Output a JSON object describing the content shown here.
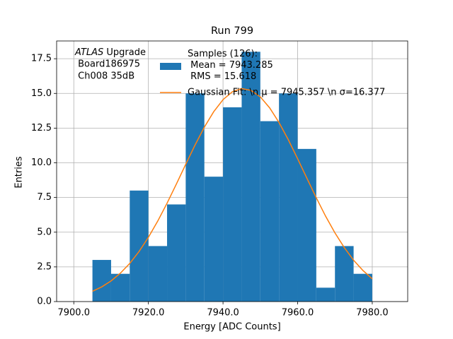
{
  "chart_data": {
    "type": "histogram",
    "title": "Run 799",
    "xlabel": "Energy [ADC Counts]",
    "ylabel": "Entries",
    "annotation_title": "ATLAS",
    "annotation": [
      " Upgrade",
      " Board186975",
      " Ch008 35dB"
    ],
    "bins": [
      7905,
      7910,
      7915,
      7920,
      7925,
      7930,
      7935,
      7940,
      7945,
      7950,
      7955,
      7960,
      7965,
      7970,
      7975,
      7980
    ],
    "series": [
      {
        "name": "Samples (126):\n Mean = 7943.285\n RMS = 15.618",
        "color": "#1f77b4",
        "values": [
          3,
          2,
          8,
          4,
          7,
          15,
          9,
          14,
          18,
          13,
          15,
          11,
          1,
          4,
          2
        ]
      },
      {
        "name": "Gaussian Fit: \\n μ = 7945.357 \\n σ=16.377",
        "color": "#ff7f0e",
        "type": "line",
        "x": [
          7905,
          7907.5,
          7910,
          7912.5,
          7915,
          7917.5,
          7920,
          7922.5,
          7925,
          7927.5,
          7930,
          7932.5,
          7935,
          7937.5,
          7940,
          7942.5,
          7945,
          7947.5,
          7950,
          7952.5,
          7955,
          7957.5,
          7960,
          7962.5,
          7965,
          7967.5,
          7970,
          7972.5,
          7975,
          7977.5,
          7980
        ],
        "values": [
          0.74,
          1.06,
          1.49,
          2.05,
          2.75,
          3.61,
          4.63,
          5.8,
          7.09,
          8.47,
          9.89,
          11.28,
          12.57,
          13.68,
          14.55,
          15.12,
          15.35,
          15.22,
          14.75,
          13.96,
          12.91,
          11.66,
          10.29,
          8.88,
          7.48,
          6.15,
          4.95,
          3.89,
          2.98,
          2.24,
          1.64
        ]
      }
    ],
    "xlim": [
      7895.4,
      7989.5
    ],
    "ylim": [
      0,
      18.78
    ],
    "xticks": [
      {
        "value": 7900,
        "label": "7900.0"
      },
      {
        "value": 7920,
        "label": "7920.0"
      },
      {
        "value": 7940,
        "label": "7940.0"
      },
      {
        "value": 7960,
        "label": "7960.0"
      },
      {
        "value": 7980,
        "label": "7980.0"
      }
    ],
    "yticks": [
      {
        "value": 0,
        "label": "0.0"
      },
      2.5,
      {
        "value": 5,
        "label": "5.0"
      },
      7.5,
      {
        "value": 10,
        "label": "10.0"
      },
      12.5,
      {
        "value": 15,
        "label": "15.0"
      },
      17.5
    ],
    "grid": true
  }
}
